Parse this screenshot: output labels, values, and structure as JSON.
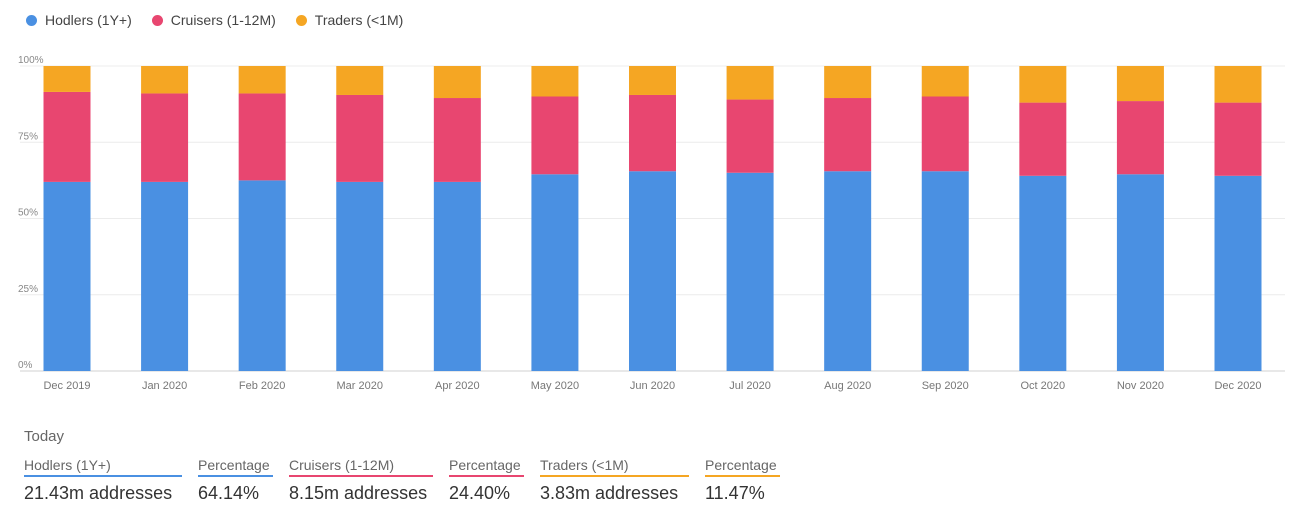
{
  "legend": {
    "items": [
      {
        "label": "Hodlers (1Y+)",
        "color": "#4a90e2"
      },
      {
        "label": "Cruisers (1-12M)",
        "color": "#e84670"
      },
      {
        "label": "Traders (<1M)",
        "color": "#f5a623"
      }
    ]
  },
  "chart_data": {
    "type": "bar",
    "stacked": true,
    "categories": [
      "Dec 2019",
      "Jan 2020",
      "Feb 2020",
      "Mar 2020",
      "Apr 2020",
      "May 2020",
      "Jun 2020",
      "Jul 2020",
      "Aug 2020",
      "Sep 2020",
      "Oct 2020",
      "Nov 2020",
      "Dec 2020"
    ],
    "series": [
      {
        "name": "Hodlers (1Y+)",
        "color": "#4a90e2",
        "values": [
          62,
          62,
          62.5,
          62,
          62,
          64.5,
          65.5,
          65,
          65.5,
          65.5,
          64,
          64.5,
          64
        ]
      },
      {
        "name": "Cruisers (1-12M)",
        "color": "#e84670",
        "values": [
          29.5,
          29,
          28.5,
          28.5,
          27.5,
          25.5,
          25,
          24,
          24,
          24.5,
          24,
          24,
          24
        ]
      },
      {
        "name": "Traders (<1M)",
        "color": "#f5a623",
        "values": [
          8.5,
          9,
          9,
          9.5,
          10.5,
          10,
          9.5,
          11,
          10.5,
          10,
          12,
          11.5,
          12
        ]
      }
    ],
    "yticks": [
      "0%",
      "25%",
      "50%",
      "75%",
      "100%"
    ],
    "ylim": [
      0,
      100
    ],
    "grid": true
  },
  "today": {
    "title": "Today",
    "stats": [
      {
        "label": "Hodlers (1Y+)",
        "value": "21.43m addresses",
        "color": "#4a90e2"
      },
      {
        "label": "Percentage",
        "value": "64.14%",
        "color": "#4a90e2"
      },
      {
        "label": "Cruisers (1-12M)",
        "value": "8.15m addresses",
        "color": "#e84670"
      },
      {
        "label": "Percentage",
        "value": "24.40%",
        "color": "#e84670"
      },
      {
        "label": "Traders (<1M)",
        "value": "3.83m addresses",
        "color": "#f5a623"
      },
      {
        "label": "Percentage",
        "value": "11.47%",
        "color": "#f5a623"
      }
    ]
  }
}
